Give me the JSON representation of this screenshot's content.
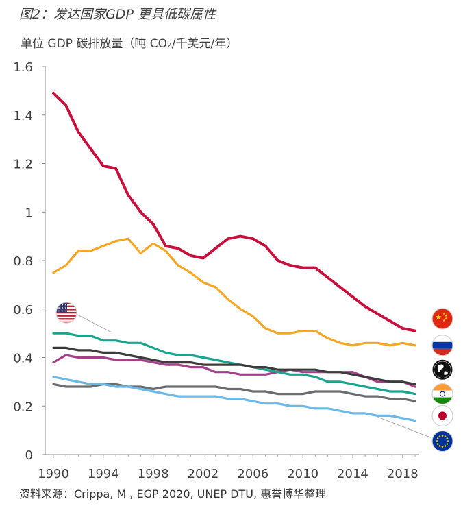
{
  "figure": {
    "title": "图2：发达国家GDP 更具低碳属性",
    "source": "资料来源：Crippa, M , EGP 2020, UNEP DTU, 惠誉博华整理"
  },
  "chart_data": {
    "type": "line",
    "title": "",
    "ylabel": "单位 GDP 碳排放量（吨 CO₂/千美元/年）",
    "xlabel": "",
    "xlim": [
      1990,
      2019
    ],
    "ylim": [
      0,
      1.6
    ],
    "x_ticks": [
      "1990",
      "1994",
      "1998",
      "2002",
      "2006",
      "2010",
      "2014",
      "2018"
    ],
    "y_ticks": [
      "0",
      "0.2",
      "0.4",
      "0.6",
      "0.8",
      "1",
      "1.2",
      "1.4",
      "1.6"
    ],
    "grid": false,
    "legend": "flag icons at line ends",
    "x": [
      1990,
      1991,
      1992,
      1993,
      1994,
      1995,
      1996,
      1997,
      1998,
      1999,
      2000,
      2001,
      2002,
      2003,
      2004,
      2005,
      2006,
      2007,
      2008,
      2009,
      2010,
      2011,
      2012,
      2013,
      2014,
      2015,
      2016,
      2017,
      2018,
      2019
    ],
    "series": [
      {
        "flag": "china-flag-icon",
        "color": "#c8103d",
        "values": [
          1.49,
          1.44,
          1.33,
          1.26,
          1.19,
          1.18,
          1.07,
          1.0,
          0.95,
          0.86,
          0.85,
          0.82,
          0.81,
          0.85,
          0.89,
          0.9,
          0.89,
          0.86,
          0.8,
          0.78,
          0.77,
          0.77,
          0.73,
          0.69,
          0.65,
          0.61,
          0.58,
          0.55,
          0.52,
          0.51
        ]
      },
      {
        "flag": "russia-flag-icon",
        "color": "#f5a623",
        "values": [
          0.75,
          0.78,
          0.84,
          0.84,
          0.86,
          0.88,
          0.89,
          0.83,
          0.87,
          0.84,
          0.78,
          0.75,
          0.71,
          0.69,
          0.64,
          0.6,
          0.57,
          0.52,
          0.5,
          0.5,
          0.51,
          0.51,
          0.48,
          0.46,
          0.45,
          0.46,
          0.46,
          0.45,
          0.46,
          0.45
        ]
      },
      {
        "flag": "india-flag-icon",
        "color": "#17a58e",
        "values": [
          0.5,
          0.5,
          0.49,
          0.49,
          0.47,
          0.47,
          0.46,
          0.46,
          0.44,
          0.42,
          0.41,
          0.41,
          0.4,
          0.39,
          0.38,
          0.37,
          0.36,
          0.35,
          0.34,
          0.33,
          0.33,
          0.32,
          0.3,
          0.3,
          0.29,
          0.28,
          0.27,
          0.26,
          0.26,
          0.25
        ]
      },
      {
        "flag": "world-globe-icon",
        "color": "#3c3c3c",
        "values": [
          0.44,
          0.44,
          0.43,
          0.43,
          0.42,
          0.42,
          0.41,
          0.4,
          0.39,
          0.38,
          0.38,
          0.38,
          0.37,
          0.37,
          0.37,
          0.37,
          0.36,
          0.36,
          0.35,
          0.35,
          0.35,
          0.35,
          0.34,
          0.34,
          0.33,
          0.32,
          0.31,
          0.3,
          0.3,
          0.29
        ]
      },
      {
        "flag": "japan-flag-icon",
        "color": "#a3418a",
        "values": [
          0.38,
          0.41,
          0.4,
          0.4,
          0.4,
          0.39,
          0.39,
          0.39,
          0.38,
          0.37,
          0.37,
          0.36,
          0.36,
          0.34,
          0.34,
          0.33,
          0.33,
          0.33,
          0.34,
          0.35,
          0.34,
          0.34,
          0.34,
          0.34,
          0.34,
          0.32,
          0.3,
          0.3,
          0.3,
          0.28
        ]
      },
      {
        "flag": "usa-flag-icon",
        "color": "#6a6d70",
        "values": [
          0.29,
          0.28,
          0.28,
          0.28,
          0.29,
          0.29,
          0.28,
          0.28,
          0.27,
          0.28,
          0.28,
          0.28,
          0.28,
          0.28,
          0.27,
          0.27,
          0.26,
          0.26,
          0.25,
          0.25,
          0.25,
          0.26,
          0.26,
          0.26,
          0.25,
          0.24,
          0.24,
          0.23,
          0.23,
          0.22
        ]
      },
      {
        "flag": "eu-flag-icon",
        "color": "#6cb8e6",
        "values": [
          0.32,
          0.31,
          0.3,
          0.29,
          0.29,
          0.28,
          0.28,
          0.27,
          0.26,
          0.25,
          0.24,
          0.24,
          0.24,
          0.24,
          0.23,
          0.23,
          0.22,
          0.21,
          0.21,
          0.2,
          0.2,
          0.19,
          0.19,
          0.18,
          0.17,
          0.17,
          0.16,
          0.16,
          0.15,
          0.14
        ]
      }
    ]
  }
}
